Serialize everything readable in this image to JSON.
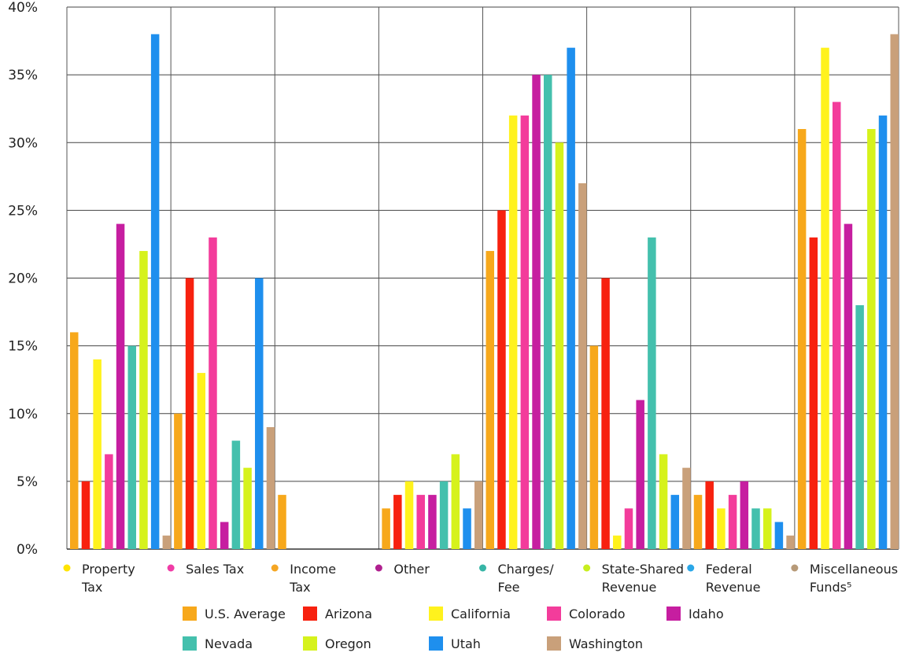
{
  "chart_data": {
    "type": "bar",
    "ylim": [
      0,
      40
    ],
    "y_ticks": [
      {
        "value": 0,
        "label": "0%"
      },
      {
        "value": 5,
        "label": "5%"
      },
      {
        "value": 10,
        "label": "10%"
      },
      {
        "value": 15,
        "label": "15%"
      },
      {
        "value": 20,
        "label": "20%"
      },
      {
        "value": 25,
        "label": "25%"
      },
      {
        "value": 30,
        "label": "30%"
      },
      {
        "value": 35,
        "label": "35%"
      },
      {
        "value": 40,
        "label": "40%"
      }
    ],
    "grid": true,
    "categories": [
      {
        "lines": [
          "Property",
          "Tax"
        ],
        "marker_color": "#ffe400"
      },
      {
        "lines": [
          "Sales Tax"
        ],
        "marker_color": "#f03ca6"
      },
      {
        "lines": [
          "Income",
          "Tax"
        ],
        "marker_color": "#f5a623"
      },
      {
        "lines": [
          "Other"
        ],
        "marker_color": "#b0208f"
      },
      {
        "lines": [
          "Charges/",
          "Fee"
        ],
        "marker_color": "#37b5a6"
      },
      {
        "lines": [
          "State-Shared",
          "Revenue"
        ],
        "marker_color": "#c8ee1e"
      },
      {
        "lines": [
          "Federal",
          "Revenue"
        ],
        "marker_color": "#2aa7e8"
      },
      {
        "lines": [
          "Miscellaneous",
          "Funds⁵"
        ],
        "marker_color": "#b79a78"
      }
    ],
    "series": [
      {
        "name": "U.S. Average",
        "color": "#f7a81b",
        "values": [
          16,
          10,
          4,
          3,
          22,
          15,
          4,
          31
        ]
      },
      {
        "name": "Arizona",
        "color": "#f7210f",
        "values": [
          5,
          20,
          0,
          4,
          25,
          20,
          5,
          23
        ]
      },
      {
        "name": "California",
        "color": "#fff21d",
        "values": [
          14,
          13,
          0,
          5,
          32,
          1,
          3,
          37
        ]
      },
      {
        "name": "Colorado",
        "color": "#f33c9b",
        "values": [
          7,
          23,
          0,
          4,
          32,
          3,
          4,
          33
        ]
      },
      {
        "name": "Idaho",
        "color": "#c61ea0",
        "values": [
          24,
          2,
          0,
          4,
          35,
          11,
          5,
          24
        ]
      },
      {
        "name": "Nevada",
        "color": "#44c0ad",
        "values": [
          15,
          8,
          0,
          5,
          35,
          23,
          3,
          18
        ]
      },
      {
        "name": "Oregon",
        "color": "#d6f21c",
        "values": [
          22,
          6,
          0,
          7,
          30,
          7,
          3,
          31
        ]
      },
      {
        "name": "Utah",
        "color": "#1e8fee",
        "values": [
          38,
          20,
          0,
          3,
          37,
          4,
          2,
          32
        ]
      },
      {
        "name": "Washington",
        "color": "#c9a07a",
        "values": [
          1,
          9,
          0,
          5,
          27,
          6,
          1,
          38
        ]
      }
    ]
  }
}
